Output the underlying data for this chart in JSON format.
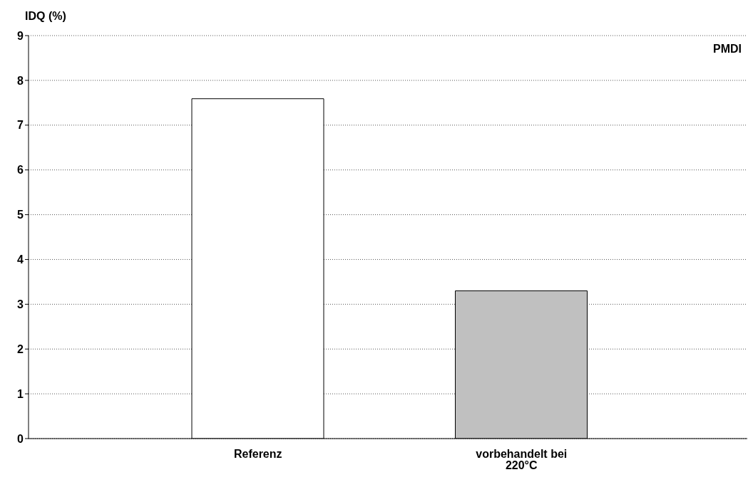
{
  "chart_data": {
    "type": "bar",
    "ylabel": "IDQ (%)",
    "categories": [
      "Referenz",
      "vorbehandelt bei 220°C"
    ],
    "values": [
      7.59,
      3.3
    ],
    "colors": [
      "#ffffff",
      "#c0c0c0"
    ],
    "ylim": [
      0,
      9
    ],
    "yticks": [
      0,
      1,
      2,
      3,
      4,
      5,
      6,
      7,
      8,
      9
    ],
    "grid": "y",
    "annotations": [
      "PMDI"
    ]
  }
}
